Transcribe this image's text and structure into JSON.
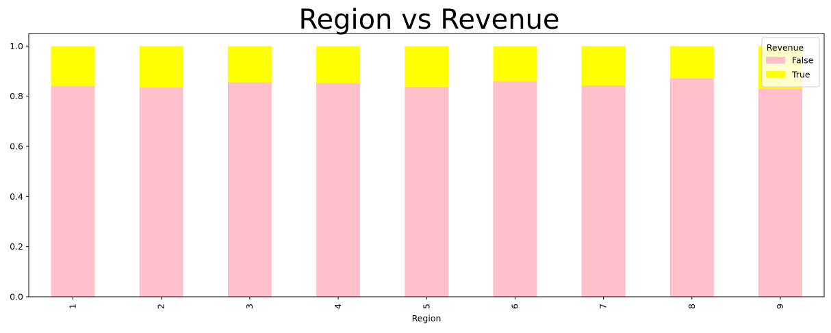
{
  "chart_data": {
    "type": "bar",
    "stacked": true,
    "title": "Region vs Revenue",
    "xlabel": "Region",
    "ylabel": "",
    "categories": [
      "1",
      "2",
      "3",
      "4",
      "5",
      "6",
      "7",
      "8",
      "9"
    ],
    "series": [
      {
        "name": "False",
        "color": "#FFC0CB",
        "values": [
          0.84,
          0.835,
          0.855,
          0.853,
          0.838,
          0.86,
          0.843,
          0.872,
          0.83
        ]
      },
      {
        "name": "True",
        "color": "#FFFF00",
        "values": [
          0.16,
          0.165,
          0.145,
          0.147,
          0.162,
          0.14,
          0.157,
          0.128,
          0.17
        ]
      }
    ],
    "ylim": [
      0,
      1.05
    ],
    "yticks": [
      "0.0",
      "0.2",
      "0.4",
      "0.6",
      "0.8",
      "1.0"
    ],
    "xtick_rotation": "vertical",
    "grid": false,
    "legend": {
      "title": "Revenue",
      "placement": "top-right"
    }
  }
}
